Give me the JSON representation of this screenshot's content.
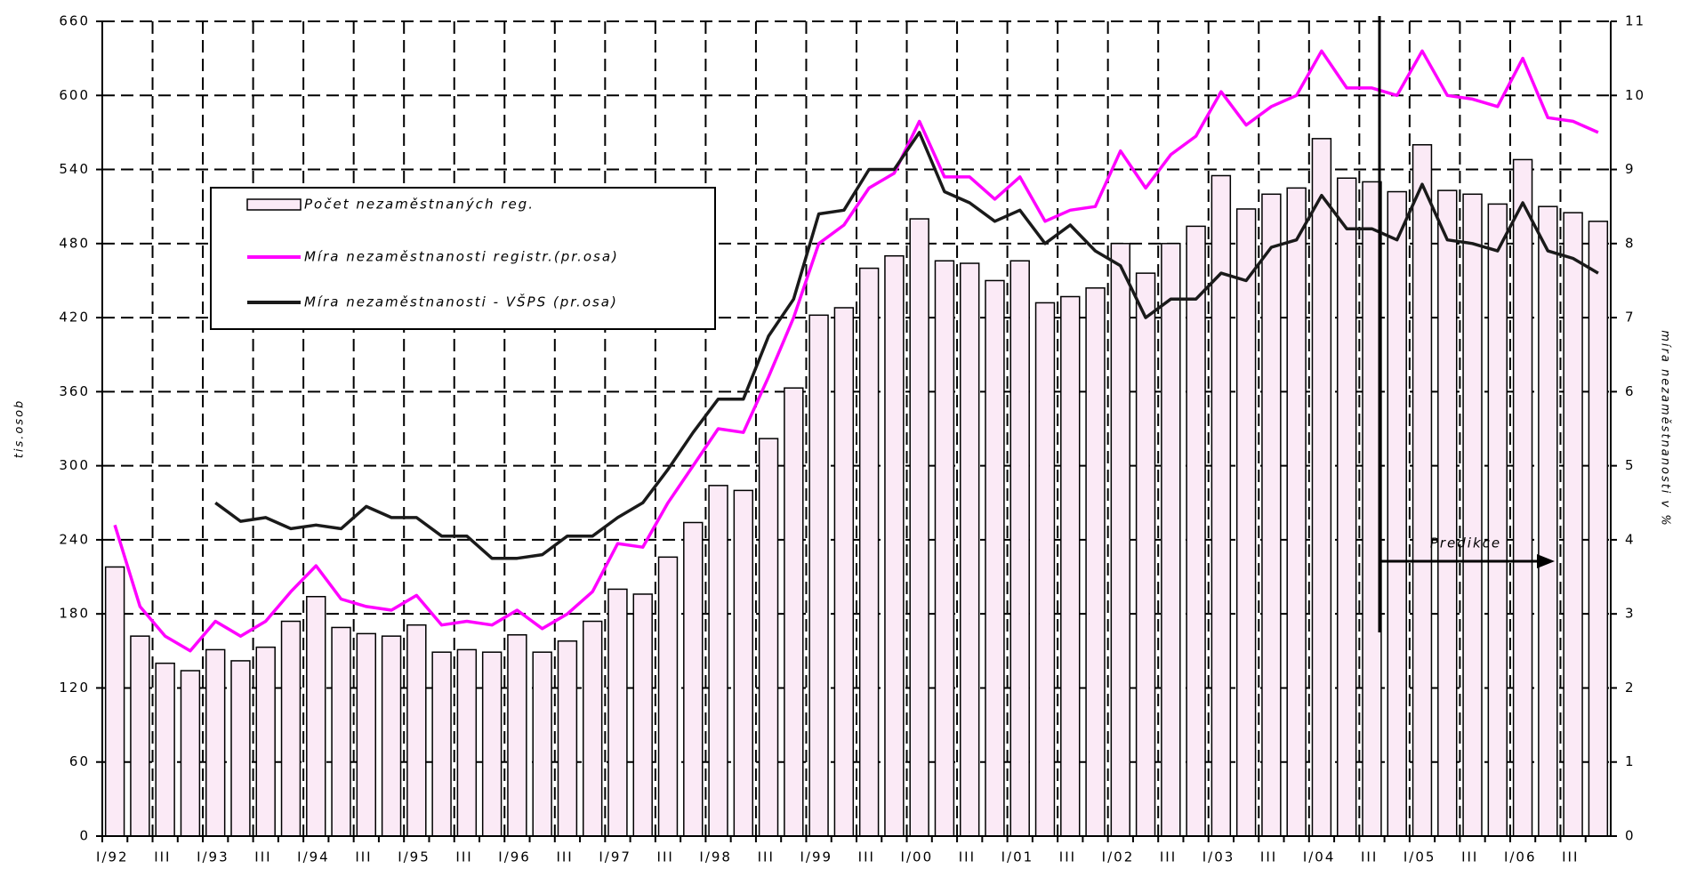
{
  "chart_data": {
    "type": "bar-line",
    "y_label": "tis.osob",
    "y2_label": "míra nezaměstnanosti v %",
    "annotation": "Predikce",
    "categories": [
      "I/92",
      null,
      "III",
      null,
      "I/93",
      null,
      "III",
      null,
      "I/94",
      null,
      "III",
      null,
      "I/95",
      null,
      "III",
      null,
      "I/96",
      null,
      "III",
      null,
      "I/97",
      null,
      "III",
      null,
      "I/98",
      null,
      "III",
      null,
      "I/99",
      null,
      "III",
      null,
      "I/00",
      null,
      "III",
      null,
      "I/01",
      null,
      "III",
      null,
      "I/02",
      null,
      "III",
      null,
      "I/03",
      null,
      "III",
      null,
      "I/04",
      null,
      "III",
      null,
      "I/05",
      null,
      "III",
      null,
      "I/06",
      null,
      "III",
      null
    ],
    "series": [
      {
        "name": "Počet nezaměstnaných reg.",
        "kind": "bar",
        "color": "#fbeaf6",
        "values": [
          218,
          162,
          140,
          134,
          151,
          142,
          153,
          174,
          194,
          169,
          164,
          162,
          171,
          149,
          151,
          149,
          163,
          149,
          158,
          174,
          200,
          196,
          226,
          254,
          284,
          280,
          322,
          363,
          422,
          428,
          460,
          470,
          500,
          466,
          464,
          450,
          466,
          432,
          437,
          444,
          480,
          456,
          480,
          494,
          535,
          508,
          520,
          525,
          565,
          533,
          530,
          522,
          560,
          523,
          520,
          512,
          548,
          510,
          505,
          498
        ]
      },
      {
        "name": "Míra nezaměstnanosti registr.(pr.osa)",
        "kind": "line",
        "axis": "y2",
        "color": "#ff00ff",
        "values": [
          4.2,
          3.1,
          2.7,
          2.5,
          2.9,
          2.7,
          2.9,
          3.3,
          3.65,
          3.2,
          3.1,
          3.05,
          3.25,
          2.85,
          2.9,
          2.85,
          3.05,
          2.8,
          3.0,
          3.3,
          3.95,
          3.9,
          4.5,
          5.0,
          5.5,
          5.45,
          6.2,
          7.0,
          8.0,
          8.25,
          8.75,
          8.95,
          9.65,
          8.9,
          8.9,
          8.6,
          8.9,
          8.3,
          8.45,
          8.5,
          9.25,
          8.75,
          9.2,
          9.45,
          10.05,
          9.6,
          9.85,
          10.0,
          10.6,
          10.1,
          10.1,
          10.0,
          10.6,
          10.0,
          9.95,
          9.85,
          10.5,
          9.7,
          9.65,
          9.5
        ]
      },
      {
        "name": "Míra nezaměstnanosti - VŠPS (pr.osa)",
        "kind": "line",
        "axis": "y2",
        "color": "#1a1a1a",
        "values": [
          null,
          null,
          null,
          null,
          4.5,
          4.25,
          4.3,
          4.15,
          4.2,
          4.15,
          4.45,
          4.3,
          4.3,
          4.05,
          4.05,
          3.75,
          3.75,
          3.8,
          4.05,
          4.05,
          4.3,
          4.5,
          4.95,
          5.45,
          5.9,
          5.9,
          6.75,
          7.25,
          8.4,
          8.45,
          9.0,
          9.0,
          9.5,
          8.7,
          8.55,
          8.3,
          8.45,
          8.0,
          8.25,
          7.9,
          7.7,
          7.0,
          7.25,
          7.25,
          7.6,
          7.5,
          7.95,
          8.05,
          8.65,
          8.2,
          8.2,
          8.05,
          8.8,
          8.05,
          8.0,
          7.9,
          8.55,
          7.9,
          7.8,
          7.6
        ]
      }
    ],
    "ylim": [
      0,
      660
    ],
    "yticks": [
      0,
      60,
      120,
      180,
      240,
      300,
      360,
      420,
      480,
      540,
      600,
      660
    ],
    "y2lim": [
      0,
      11
    ],
    "y2ticks": [
      0,
      1,
      2,
      3,
      4,
      5,
      6,
      7,
      8,
      9,
      10,
      11
    ],
    "grid": true
  }
}
